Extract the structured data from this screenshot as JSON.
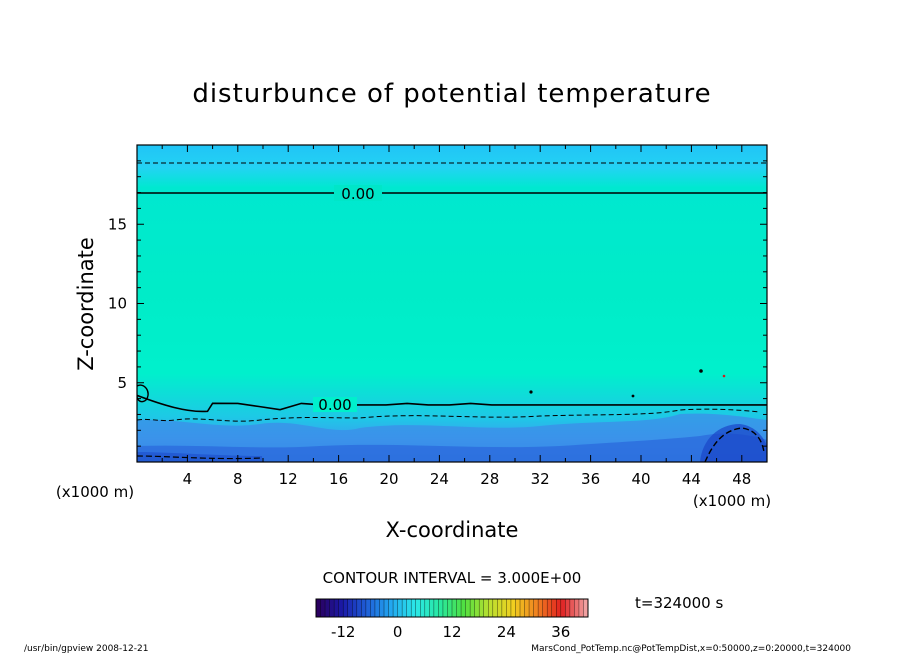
{
  "chart_data": {
    "type": "heatmap",
    "title": "disturbunce of potential temperature",
    "xlabel": "X-coordinate",
    "ylabel": "Z-coordinate",
    "x_unit": "(x1000 m)",
    "xlim": [
      0,
      50
    ],
    "ylim": [
      0,
      20
    ],
    "x_ticks": [
      4,
      8,
      12,
      16,
      20,
      24,
      28,
      32,
      36,
      40,
      44,
      48
    ],
    "y_ticks": [
      5,
      10,
      15
    ],
    "contour_interval": "CONTOUR INTERVAL = 3.000E+00",
    "contour_labels": [
      {
        "text": "0.00",
        "x": 17,
        "z": 17
      },
      {
        "text": "0.00",
        "x": 15.5,
        "z": 3.6
      }
    ],
    "zero_contour_upper_z": 17,
    "zero_contour_lower_z": [
      3.7,
      3.5,
      3.3,
      3.7,
      3.6,
      3.6,
      3.6,
      3.6,
      3.7,
      3.6,
      3.6,
      3.7,
      3.6,
      3.6,
      3.6,
      3.6,
      3.6,
      3.6,
      3.6,
      3.6,
      3.6,
      3.6,
      3.6,
      3.6,
      3.6,
      3.6
    ],
    "dashed_contour_upper_z": 18.9,
    "colorbar": {
      "min": -18,
      "max": 42,
      "ticks": [
        -12,
        0,
        12,
        24,
        36
      ],
      "colors": [
        "#2a0060",
        "#1a1aa8",
        "#1f5fd8",
        "#22a8f0",
        "#2be8e8",
        "#28e8a0",
        "#50e040",
        "#b8e030",
        "#f0d020",
        "#f08020",
        "#e02020",
        "#f0a0a0"
      ]
    },
    "field_colors": {
      "top_band": "#20c8f8",
      "upper_zone": "#00e6c8",
      "middle": "#00f0cc",
      "near_surface": "#3aa0f0",
      "surface": "#2a70e0"
    },
    "time_label": "t=324000 s",
    "footer_left": "/usr/bin/gpview  2008-12-21",
    "footer_right": "MarsCond_PotTemp.nc@PotTempDist,x=0:50000,z=0:20000,t=324000"
  }
}
